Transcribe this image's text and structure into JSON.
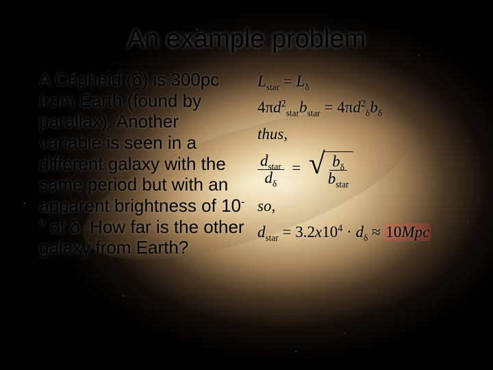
{
  "title": "An example problem",
  "bullet": {
    "marker": "•",
    "text_before_sup": "A Cepheid (δ) is 300pc from Earth (found by parallax). Another variable is seen in a different galaxy with the same period but with an apparent brightness of 10",
    "sup": "-9",
    "text_after_sup": " of δ.  How far is the other galaxy from Earth?"
  },
  "equations": {
    "eq1_lhs_var": "L",
    "eq1_lhs_sub": "star",
    "eq1_rhs_var": "L",
    "eq1_rhs_sub": "δ",
    "eq2_lhs_coef": "4π",
    "eq2_lhs_d": "d",
    "eq2_lhs_dsup": "2",
    "eq2_lhs_dsub": "star",
    "eq2_lhs_b": "b",
    "eq2_lhs_bsub": "star",
    "eq2_rhs_coef": "4π",
    "eq2_rhs_d": "d",
    "eq2_rhs_dsup": "2",
    "eq2_rhs_dsub": "δ",
    "eq2_rhs_b": "b",
    "eq2_rhs_bsub": "δ",
    "thus": "thus,",
    "eq3_lhs_num_var": "d",
    "eq3_lhs_num_sub": "star",
    "eq3_lhs_den_var": "d",
    "eq3_lhs_den_sub": "δ",
    "eq3_rhs_num_var": "b",
    "eq3_rhs_num_sub": "δ",
    "eq3_rhs_den_var": "b",
    "eq3_rhs_den_sub": "star",
    "so": "so,",
    "eq4_lhs_var": "d",
    "eq4_lhs_sub": "star",
    "eq4_rhs_coef": "3.2",
    "eq4_rhs_x": "x",
    "eq4_rhs_base": "10",
    "eq4_rhs_exp": "4",
    "eq4_rhs_dot": "·",
    "eq4_rhs_dvar": "d",
    "eq4_rhs_dsub": "δ",
    "eq4_approx": "≈",
    "eq4_result_num": "10",
    "eq4_result_unit": "Mpc"
  },
  "colors": {
    "text": "#000000",
    "highlight_bg": "rgba(255,70,70,0.22)"
  },
  "typography": {
    "title_fontsize": 38,
    "body_fontsize": 26,
    "eq_fontsize": 23,
    "body_font": "Arial",
    "eq_font": "Times New Roman"
  }
}
